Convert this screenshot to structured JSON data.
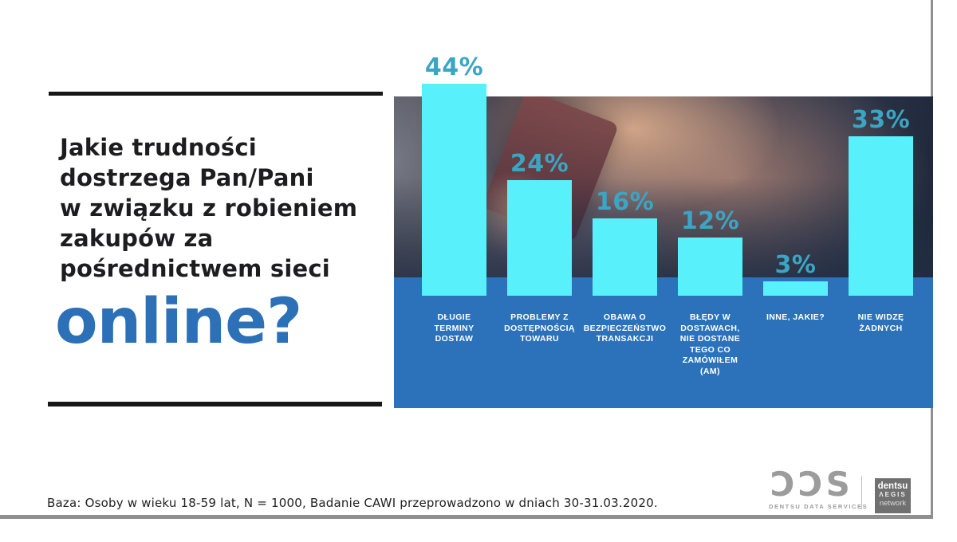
{
  "slide": {
    "heading": "Jakie trudności\ndostrzega Pan/Pani\nw związku z robieniem\nzakupów za\npośrednictwem sieci",
    "heading_highlight": "online?",
    "footnote": "Baza: Osoby w wieku 18-59 lat, N = 1000, Badanie CAWI przeprowadzono w dniach 30-31.03.2020."
  },
  "chart_data": {
    "type": "bar",
    "title": "Jakie trudności dostrzega Pan/Pani w związku z robieniem zakupów za pośrednictwem sieci online?",
    "categories": [
      "DŁUGIE\nTERMINY\nDOSTAW",
      "PROBLEMY Z\nDOSTĘPNOŚCIĄ\nTOWARU",
      "OBAWA O\nBEZPIECZEŃSTWO\nTRANSAKCJI",
      "BŁĘDY W\nDOSTAWACH,\nNIE DOSTANE\nTEGO CO\nZAMÓWIŁEM\n(AM)",
      "INNE, JAKIE?",
      "NIE WIDZĘ\nŻADNYCH"
    ],
    "values": [
      44,
      24,
      16,
      12,
      3,
      33
    ],
    "unit": "%",
    "value_labels_shown": true,
    "xlabel": "",
    "ylabel": "",
    "ylim": [
      0,
      50
    ],
    "grid": false,
    "legend": "none",
    "colors": {
      "bar": "#58f1fb",
      "value_label": "#3ba5c4",
      "band": "#2c72ba",
      "category_label": "#ffffff"
    }
  },
  "branding": {
    "dds_mark": "ƆƆS",
    "dds_caption": "DENTSU DATA SERVICES",
    "aegis_line1": "dentsu",
    "aegis_line2": "ΛEGIS",
    "aegis_line3": "network"
  }
}
